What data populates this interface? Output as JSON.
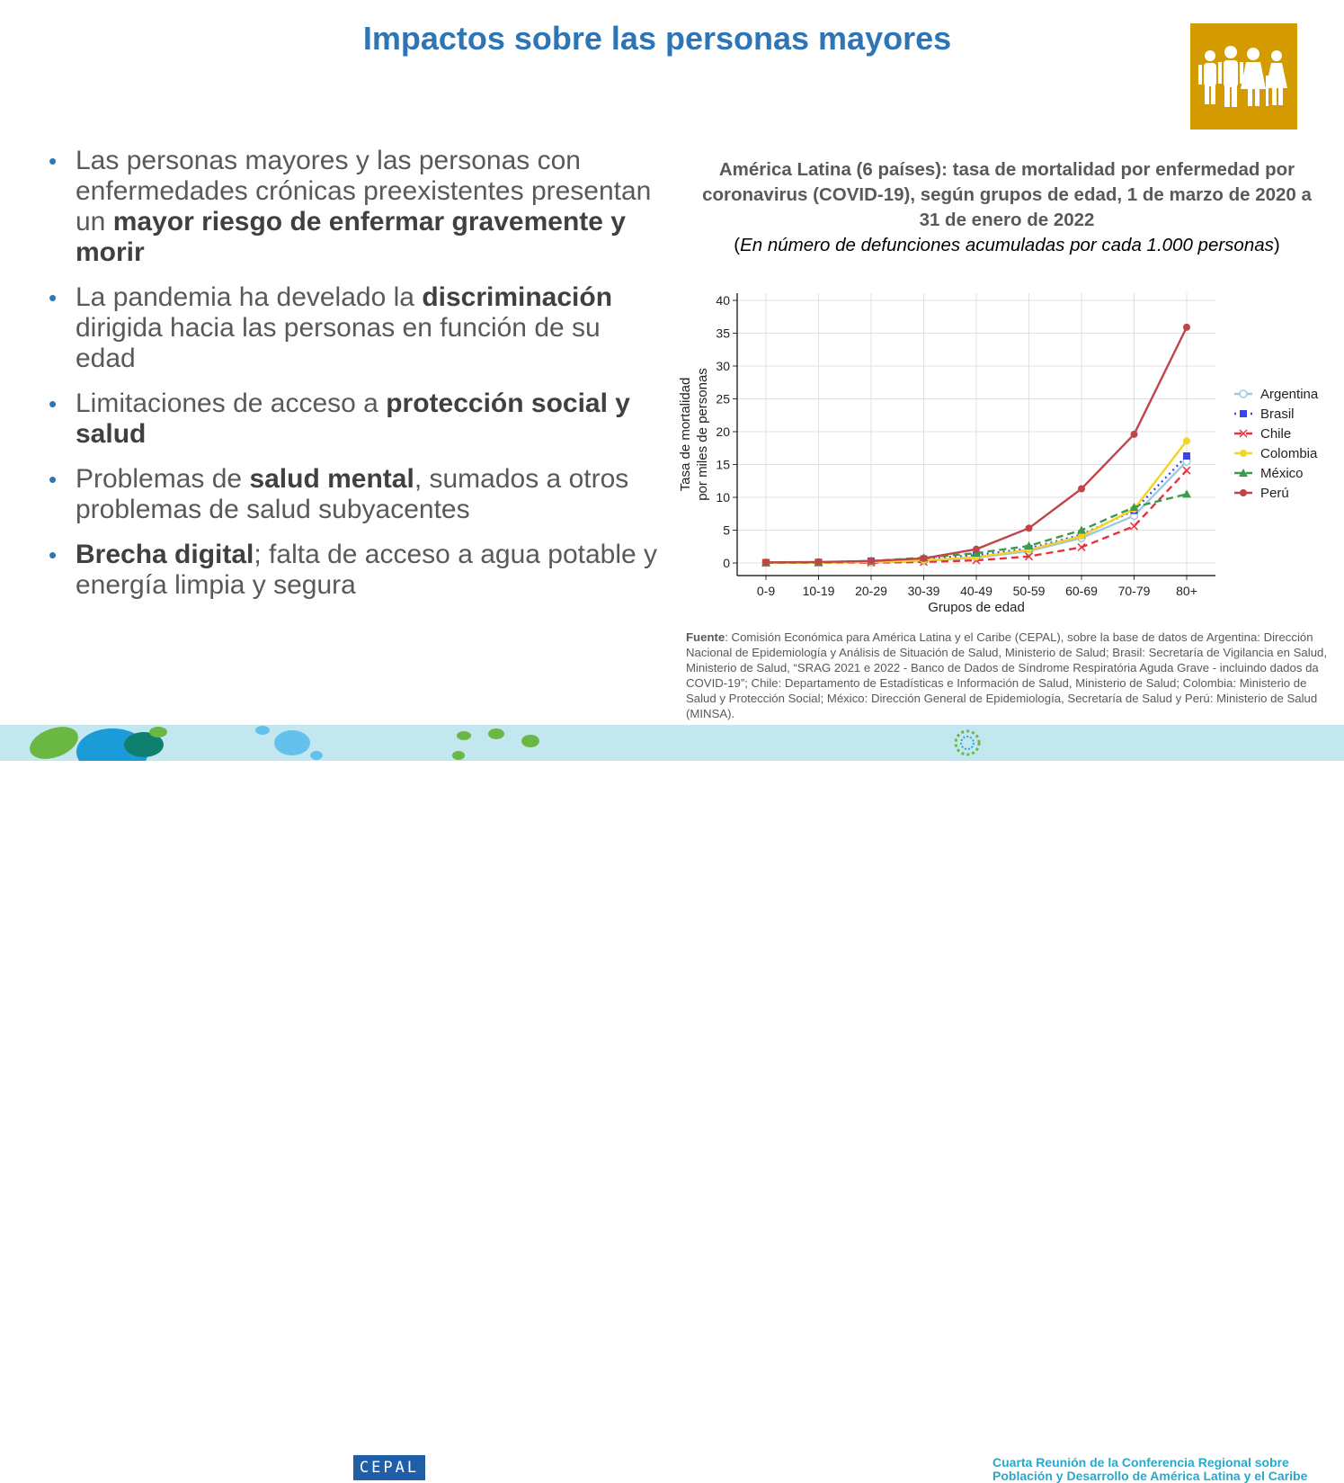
{
  "slide": {
    "title": "Impactos sobre las personas mayores",
    "bullets": [
      {
        "parts": [
          {
            "text": "Las personas mayores y las personas con enfermedades crónicas preexistentes presentan un ",
            "bold": false
          },
          {
            "text": "mayor riesgo de enfermar gravemente y morir",
            "bold": true
          }
        ]
      },
      {
        "parts": [
          {
            "text": "La pandemia ha develado la ",
            "bold": false
          },
          {
            "text": "discriminación",
            "bold": true
          },
          {
            "text": " dirigida hacia las personas en función de su edad",
            "bold": false
          }
        ]
      },
      {
        "parts": [
          {
            "text": "Limitaciones de acceso a ",
            "bold": false
          },
          {
            "text": "protección social y salud",
            "bold": true
          }
        ]
      },
      {
        "parts": [
          {
            "text": "Problemas de ",
            "bold": false
          },
          {
            "text": "salud mental",
            "bold": true
          },
          {
            "text": ", sumados a otros problemas de salud subyacentes",
            "bold": false
          }
        ]
      },
      {
        "parts": [
          {
            "text": "Brecha digital",
            "bold": true
          },
          {
            "text": "; falta de acceso a agua potable y energía limpia y segura",
            "bold": false
          }
        ]
      }
    ],
    "bullet_symbol": "•",
    "badge_icon": "people-family-icon",
    "badge_color": "#d39b00"
  },
  "chart_data": {
    "type": "line",
    "title_line1": "América Latina (6 países): tasa de mortalidad por enfermedad por coronavirus (COVID-19), según grupos de edad, 1 de marzo de 2020 a 31 de enero de 2022",
    "title_open": "(",
    "title_italic": "En número de defunciones acumuladas por cada 1.000 personas",
    "title_close": ")",
    "xlabel": "Grupos de edad",
    "ylabel_line1": "Tasa de mortalidad",
    "ylabel_line2": "por miles de personas",
    "categories": [
      "0-9",
      "10-19",
      "20-29",
      "30-39",
      "40-49",
      "50-59",
      "60-69",
      "70-79",
      "80+"
    ],
    "ylim": [
      0,
      40
    ],
    "yticks": [
      "0",
      "5",
      "10",
      "15",
      "20",
      "25",
      "30",
      "35",
      "40"
    ],
    "grid": true,
    "legend_position": "right",
    "series": [
      {
        "name": "Argentina",
        "color": "#9ecae1",
        "dash": "solid",
        "marker": "circle-open",
        "values": [
          0.05,
          0.05,
          0.1,
          0.3,
          0.8,
          1.8,
          3.8,
          7.2,
          15.5
        ]
      },
      {
        "name": "Brasil",
        "color": "#3a45e8",
        "dash": "dot",
        "marker": "square",
        "values": [
          0.05,
          0.1,
          0.3,
          0.6,
          1.2,
          2.2,
          4.3,
          8.0,
          16.3
        ]
      },
      {
        "name": "Chile",
        "color": "#e8323c",
        "dash": "dash",
        "marker": "x",
        "values": [
          0.02,
          0.03,
          0.05,
          0.15,
          0.4,
          1.0,
          2.4,
          5.6,
          14.1
        ]
      },
      {
        "name": "Colombia",
        "color": "#f5d223",
        "dash": "solid",
        "marker": "circle",
        "values": [
          0.05,
          0.05,
          0.15,
          0.4,
          0.9,
          2.0,
          4.1,
          8.2,
          18.6
        ]
      },
      {
        "name": "México",
        "color": "#3d9a4a",
        "dash": "dash",
        "marker": "triangle",
        "values": [
          0.05,
          0.1,
          0.3,
          0.8,
          1.5,
          2.6,
          5.0,
          8.5,
          10.5
        ]
      },
      {
        "name": "Perú",
        "color": "#c0454a",
        "dash": "solid",
        "marker": "circle",
        "values": [
          0.1,
          0.15,
          0.3,
          0.7,
          2.1,
          5.3,
          11.3,
          19.6,
          35.9
        ]
      }
    ]
  },
  "source": {
    "label": "Fuente",
    "text": ": Comisión Económica para América Latina y el Caribe (CEPAL), sobre la base de datos de Argentina: Dirección Nacional de Epidemiología y Análisis de Situación de Salud, Ministerio de Salud; Brasil: Secretaría de Vigilancia en Salud, Ministerio de Salud, “SRAG 2021 e 2022 - Banco de Dados de Síndrome Respiratória Aguda Grave - incluindo dados da COVID-19”; Chile: Departamento de Estadísticas e Información de Salud, Ministerio de Salud; Colombia: Ministerio de Salud y Protección Social; México: Dirección General de Epidemiología, Secretaría de Salud y Perú: Ministerio de Salud (MINSA)."
  },
  "footer": {
    "logo_text": "CEPAL",
    "conference_line1": "Cuarta Reunión de la Conferencia Regional sobre",
    "conference_line2": "Población y Desarrollo de América Latina y el Caribe",
    "background_color": "#c2e7ef",
    "accent_color": "#2aa8c9"
  }
}
